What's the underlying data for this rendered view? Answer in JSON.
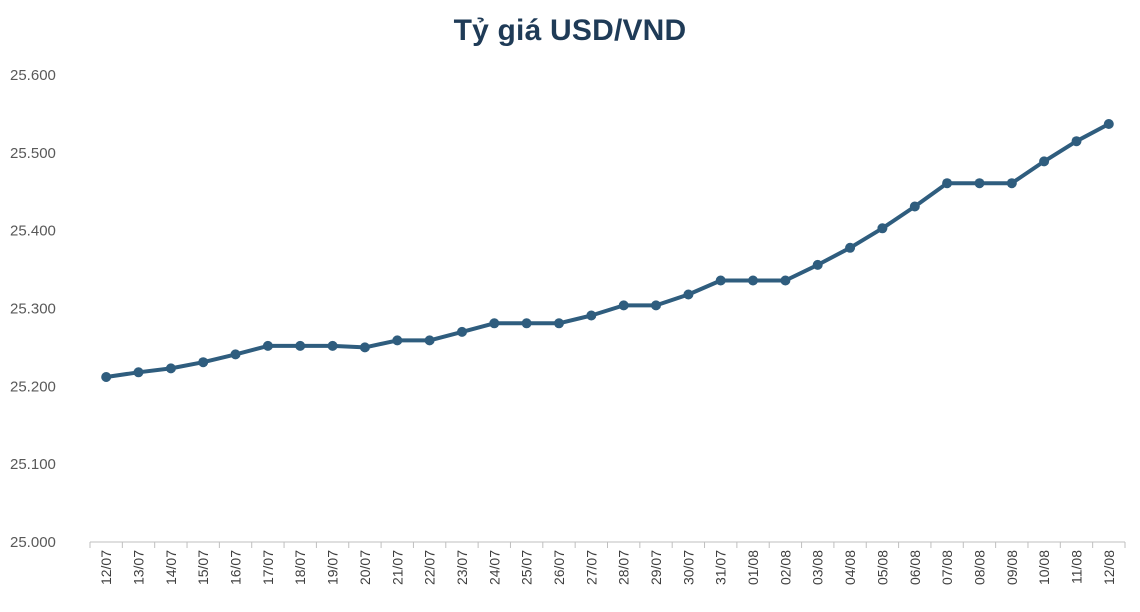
{
  "chart_data": {
    "type": "line",
    "title": "Tỷ giá USD/VND",
    "xlabel": "",
    "ylabel": "",
    "ylim": [
      25000,
      25600
    ],
    "yticks": [
      25000,
      25100,
      25200,
      25300,
      25400,
      25500,
      25600
    ],
    "ytick_labels": [
      "25.000",
      "25.100",
      "25.200",
      "25.300",
      "25.400",
      "25.500",
      "25.600"
    ],
    "grid": false,
    "legend": "none",
    "line_color": "#2f5d7e",
    "x": [
      "12/07",
      "13/07",
      "14/07",
      "15/07",
      "16/07",
      "17/07",
      "18/07",
      "19/07",
      "20/07",
      "21/07",
      "22/07",
      "23/07",
      "24/07",
      "25/07",
      "26/07",
      "27/07",
      "28/07",
      "29/07",
      "30/07",
      "31/07",
      "01/08",
      "02/08",
      "03/08",
      "04/08",
      "05/08",
      "06/08",
      "07/08",
      "08/08",
      "09/08",
      "10/08",
      "11/08",
      "12/08"
    ],
    "series": [
      {
        "values": [
          25212,
          25218,
          25223,
          25231,
          25241,
          25252,
          25252,
          25252,
          25250,
          25259,
          25259,
          25270,
          25281,
          25281,
          25281,
          25291,
          25304,
          25304,
          25318,
          25336,
          25336,
          25336,
          25356,
          25378,
          25403,
          25431,
          25461,
          25461,
          25461,
          25489,
          25515,
          25537
        ]
      }
    ]
  }
}
